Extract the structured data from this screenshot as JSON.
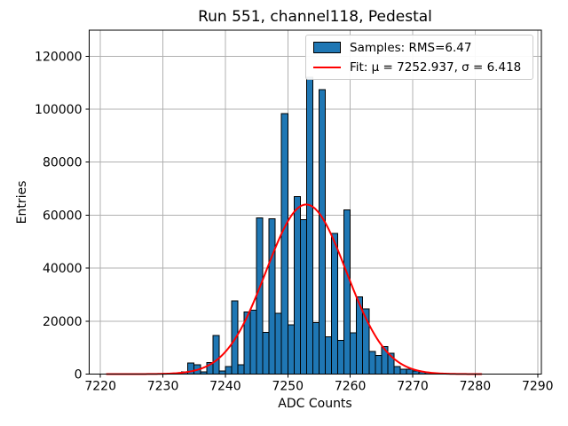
{
  "title": "Run 551, channel118, Pedestal",
  "axes": {
    "xlabel": "ADC Counts",
    "ylabel": "Entries"
  },
  "legend": {
    "position": "upper right",
    "samples_label": "Samples: RMS=6.47",
    "fit_label": "Fit: μ = 7252.937, σ = 6.418"
  },
  "colors": {
    "bar_fill": "#1f77b4",
    "bar_edge": "#000000",
    "fit_line": "#ff0000",
    "grid": "#b0b0b0",
    "spine": "#000000",
    "background": "#ffffff"
  },
  "chart_data": {
    "type": "bar",
    "title": "Run 551, channel118, Pedestal",
    "xlabel": "ADC Counts",
    "ylabel": "Entries",
    "grid": true,
    "legend_position": "upper right",
    "xlim": [
      7218.2,
      7290.6
    ],
    "ylim": [
      0,
      129800
    ],
    "x_ticks": [
      7220,
      7230,
      7240,
      7250,
      7260,
      7270,
      7280,
      7290
    ],
    "y_ticks": [
      0,
      20000,
      40000,
      60000,
      80000,
      100000,
      120000
    ],
    "bin_width": 1,
    "categories": [
      7233,
      7234,
      7235,
      7236,
      7237,
      7238,
      7239,
      7240,
      7241,
      7242,
      7243,
      7244,
      7245,
      7246,
      7247,
      7248,
      7249,
      7250,
      7251,
      7252,
      7253,
      7254,
      7255,
      7256,
      7257,
      7258,
      7259,
      7260,
      7261,
      7262,
      7263,
      7264,
      7265,
      7266,
      7267,
      7268,
      7269,
      7270,
      7271,
      7272
    ],
    "values": [
      900,
      4200,
      3600,
      800,
      4400,
      14600,
      1200,
      2800,
      27700,
      3500,
      23500,
      24200,
      59000,
      15700,
      58600,
      22900,
      98300,
      18600,
      67000,
      58300,
      112000,
      19400,
      107300,
      14000,
      53100,
      12800,
      62000,
      15600,
      29200,
      24700,
      8500,
      7000,
      10400,
      7800,
      2800,
      1800,
      1900,
      1100,
      900,
      500
    ],
    "series_label": "Samples: RMS=6.47",
    "rms": 6.47,
    "fit": {
      "label": "Fit: μ = 7252.937, σ = 6.418",
      "shape": "gaussian",
      "mu": 7252.937,
      "sigma": 6.418,
      "amplitude": 64000,
      "x_range": [
        7221,
        7281
      ]
    }
  }
}
